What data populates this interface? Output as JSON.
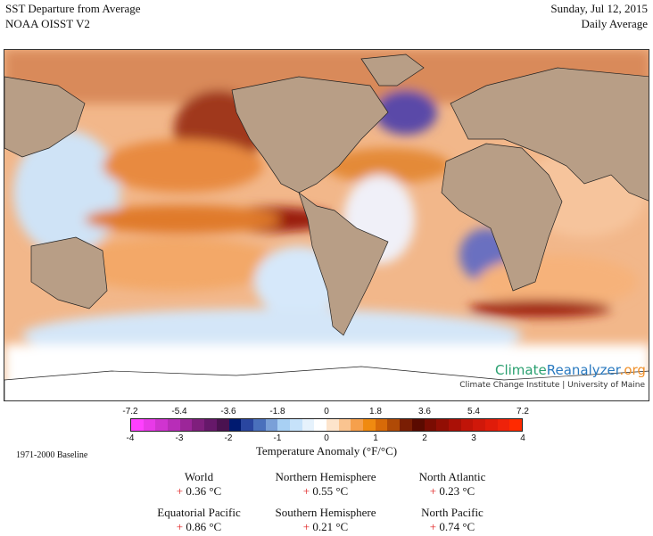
{
  "header": {
    "title": "SST Departure from Average",
    "subtitle": "NOAA OISST V2",
    "date": "Sunday, Jul 12, 2015",
    "period": "Daily Average"
  },
  "branding": {
    "logo_part1": "Climate",
    "logo_part2": "Reanalyzer",
    "logo_part3": ".org",
    "credit": "Climate Change Institute | University of Maine"
  },
  "legend": {
    "title": "Temperature Anomaly (°F/°C)",
    "f_ticks": [
      "-7.2",
      "-5.4",
      "-3.6",
      "-1.8",
      "0",
      "1.8",
      "3.6",
      "5.4",
      "7.2"
    ],
    "c_ticks": [
      "-4",
      "-3",
      "-2",
      "-1",
      "0",
      "1",
      "2",
      "3",
      "4"
    ],
    "colors": [
      "#ff40ff",
      "#e83ae8",
      "#d034d0",
      "#b82db8",
      "#9c2699",
      "#7f1f7d",
      "#66186a",
      "#4a1250",
      "#001a70",
      "#2a46a0",
      "#4a70bc",
      "#7aa0d8",
      "#a8d0f4",
      "#c6e2fa",
      "#e6f2fc",
      "#ffffff",
      "#fde4cc",
      "#fac490",
      "#f6a04c",
      "#f08a10",
      "#d86a08",
      "#b04a06",
      "#7a1e04",
      "#5a0a00"
    ],
    "colors_hot": [
      "#7a0c02",
      "#920e04",
      "#aa1006",
      "#c01408",
      "#d0180a",
      "#e01c0a",
      "#ee220a",
      "#ff2a00"
    ]
  },
  "baseline": "1971-2000 Baseline",
  "stats": [
    {
      "label": "World",
      "sign": "+",
      "value": "0.36 °C"
    },
    {
      "label": "Northern Hemisphere",
      "sign": "+",
      "value": "0.55 °C"
    },
    {
      "label": "North Atlantic",
      "sign": "+",
      "value": "0.23 °C"
    },
    {
      "label": "Equatorial Pacific",
      "sign": "+",
      "value": "0.86 °C"
    },
    {
      "label": "Southern Hemisphere",
      "sign": "+",
      "value": "0.21 °C"
    },
    {
      "label": "North Pacific",
      "sign": "+",
      "value": "0.74 °C"
    }
  ]
}
